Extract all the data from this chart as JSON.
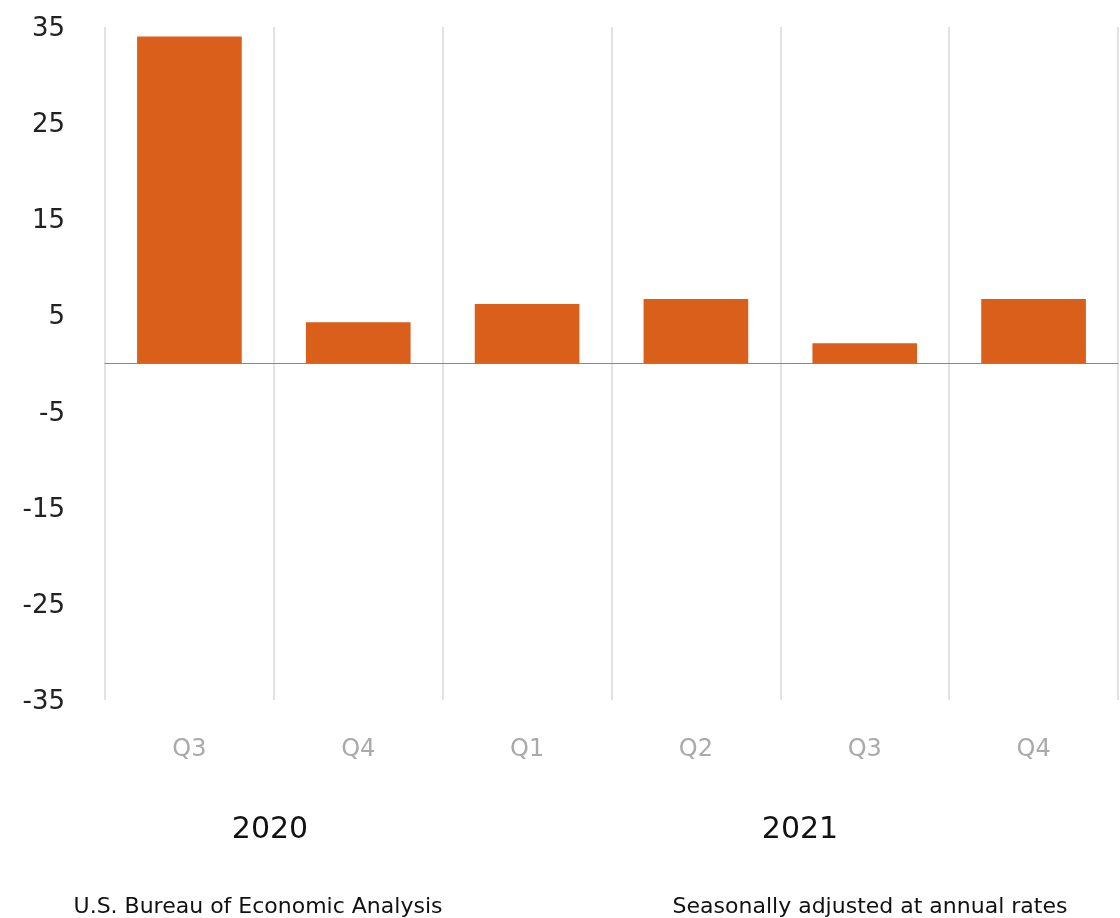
{
  "chart_data": {
    "type": "bar",
    "categories": [
      "Q3",
      "Q4",
      "Q1",
      "Q2",
      "Q3",
      "Q4"
    ],
    "values": [
      34,
      4.3,
      6.2,
      6.7,
      2.1,
      6.7
    ],
    "color": "#d95f1a",
    "ylim": [
      -35,
      35
    ],
    "yticks": [
      -35,
      -25,
      -15,
      -5,
      5,
      15,
      25,
      35
    ],
    "grid": "x",
    "annotations": [
      "2020",
      "2021",
      "U.S. Bureau of Economic Analysis",
      "Seasonally adjusted at annual rates"
    ]
  }
}
